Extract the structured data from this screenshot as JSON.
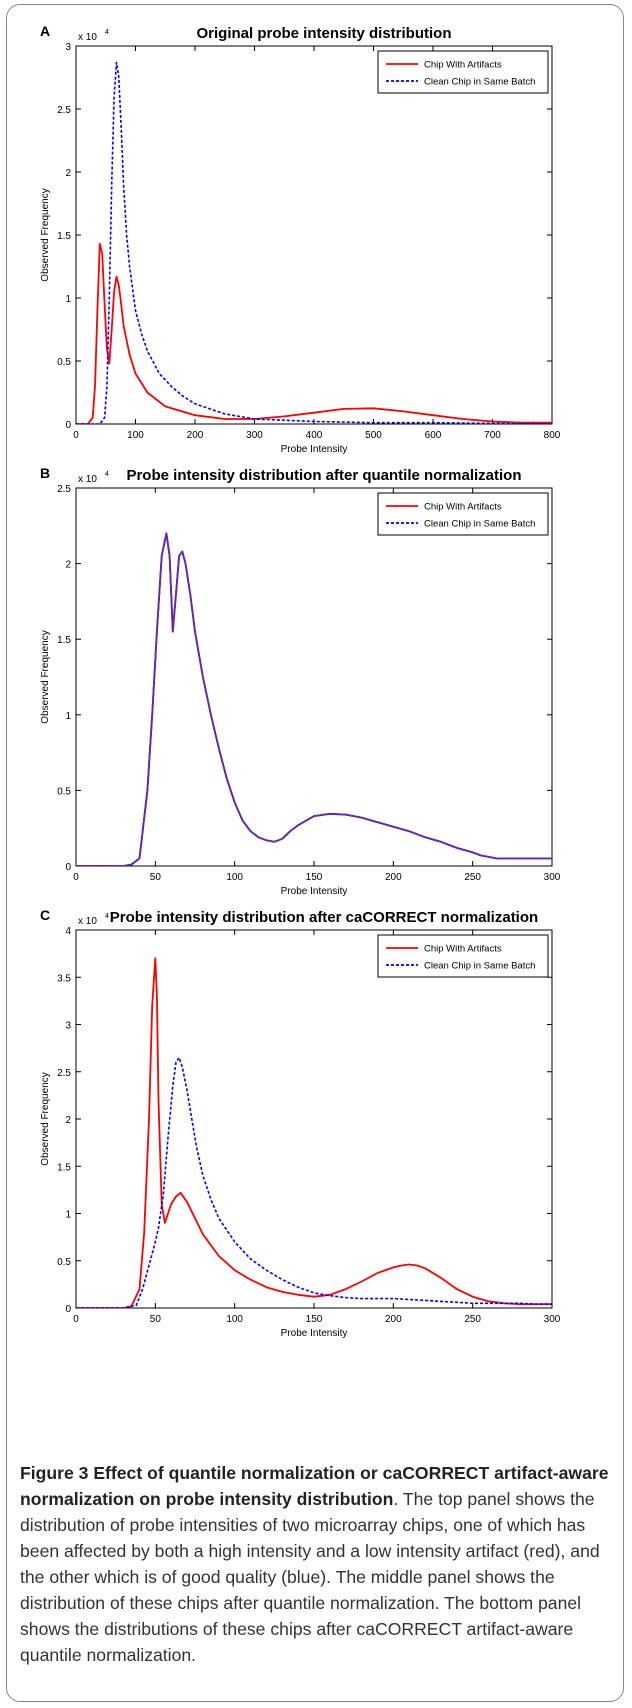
{
  "figure": {
    "caption_title": "Figure 3 Effect of quantile normalization or caCORRECT artifact-aware normalization on probe intensity distribution",
    "caption_period": ".",
    "caption_body": "The top panel shows the distribution of probe intensities of two microarray chips, one of which has been affected by both a high intensity and a low intensity artifact (red), and the other which is of good quality (blue). The middle panel shows the distribution of these chips after quantile normalization. The bottom panel shows the distributions of these chips after caCORRECT artifact-aware quantile normalization."
  },
  "colors": {
    "chip_with_artifacts": "#ff0000",
    "clean_chip": "#0000ff",
    "overlap": "#5b2bb8"
  },
  "chart_data": [
    {
      "panel_label": "A",
      "type": "line",
      "title": "Original probe intensity distribution",
      "xlabel": "Probe Intensity",
      "ylabel": "Observed Frequency",
      "exponent_label": "x 10",
      "exponent_power": "4",
      "xlim": [
        0,
        800
      ],
      "ylim": [
        0,
        3
      ],
      "xticks": [
        0,
        100,
        200,
        300,
        400,
        500,
        600,
        700,
        800
      ],
      "xtick_labels": [
        "0",
        "100",
        "200",
        "300",
        "400",
        "500",
        "600",
        "700",
        "800"
      ],
      "yticks": [
        0,
        0.5,
        1,
        1.5,
        2,
        2.5,
        3
      ],
      "ytick_labels": [
        "0",
        "0.5",
        "1",
        "1.5",
        "2",
        "2.5",
        "3"
      ],
      "legend_position": "top-right",
      "series": [
        {
          "name": "Chip With Artifacts",
          "color": "#ff0000",
          "style": "solid",
          "x": [
            0,
            20,
            28,
            32,
            36,
            40,
            44,
            48,
            52,
            56,
            60,
            64,
            68,
            72,
            76,
            80,
            90,
            100,
            120,
            150,
            200,
            250,
            300,
            350,
            400,
            450,
            500,
            550,
            600,
            650,
            700,
            750,
            800
          ],
          "y": [
            0,
            0,
            0.05,
            0.3,
            0.9,
            1.43,
            1.35,
            0.95,
            0.6,
            0.48,
            0.75,
            1.05,
            1.17,
            1.1,
            0.95,
            0.78,
            0.55,
            0.4,
            0.25,
            0.14,
            0.07,
            0.04,
            0.04,
            0.06,
            0.09,
            0.12,
            0.125,
            0.1,
            0.07,
            0.04,
            0.02,
            0.01,
            0.01
          ]
        },
        {
          "name": "Clean Chip in Same Batch",
          "color": "#0000ff",
          "style": "dashed",
          "x": [
            0,
            40,
            48,
            52,
            56,
            60,
            64,
            68,
            72,
            76,
            80,
            85,
            90,
            100,
            110,
            120,
            140,
            160,
            180,
            200,
            250,
            300,
            350,
            400,
            500,
            600,
            700,
            800
          ],
          "y": [
            0,
            0,
            0.05,
            0.3,
            1.0,
            1.9,
            2.6,
            2.87,
            2.75,
            2.35,
            1.9,
            1.5,
            1.25,
            0.9,
            0.72,
            0.58,
            0.4,
            0.3,
            0.22,
            0.16,
            0.08,
            0.04,
            0.03,
            0.02,
            0.01,
            0.01,
            0.005,
            0
          ]
        }
      ]
    },
    {
      "panel_label": "B",
      "type": "line",
      "title": "Probe intensity distribution after quantile normalization",
      "xlabel": "Probe Intensity",
      "ylabel": "Observed Frequency",
      "exponent_label": "x 10",
      "exponent_power": "4",
      "xlim": [
        0,
        300
      ],
      "ylim": [
        0,
        2.5
      ],
      "xticks": [
        0,
        50,
        100,
        150,
        200,
        250,
        300
      ],
      "xtick_labels": [
        "0",
        "50",
        "100",
        "150",
        "200",
        "250",
        "300"
      ],
      "yticks": [
        0,
        0.5,
        1,
        1.5,
        2,
        2.5
      ],
      "ytick_labels": [
        "0",
        "0.5",
        "1",
        "1.5",
        "2",
        "2.5"
      ],
      "legend_position": "top-right",
      "series": [
        {
          "name": "Chip With Artifacts",
          "color": "#ff0000",
          "style": "solid",
          "x": [
            0,
            30,
            35,
            40,
            45,
            48,
            51,
            54,
            57,
            59,
            61,
            63,
            65,
            67,
            69,
            72,
            75,
            80,
            85,
            90,
            95,
            100,
            105,
            110,
            115,
            120,
            125,
            130,
            135,
            140,
            145,
            150,
            160,
            170,
            180,
            190,
            200,
            210,
            220,
            230,
            240,
            250,
            255,
            260,
            265,
            270,
            280,
            290,
            300
          ],
          "y": [
            0,
            0,
            0.01,
            0.05,
            0.5,
            1.0,
            1.55,
            2.05,
            2.2,
            2.05,
            1.55,
            1.8,
            2.05,
            2.08,
            2.0,
            1.8,
            1.55,
            1.25,
            1.0,
            0.78,
            0.58,
            0.42,
            0.3,
            0.23,
            0.19,
            0.17,
            0.16,
            0.18,
            0.23,
            0.27,
            0.3,
            0.33,
            0.345,
            0.34,
            0.32,
            0.29,
            0.26,
            0.23,
            0.19,
            0.16,
            0.12,
            0.09,
            0.07,
            0.06,
            0.05,
            0.05,
            0.05,
            0.05,
            0.05
          ]
        },
        {
          "name": "Clean Chip in Same Batch",
          "color": "#0000ff",
          "style": "dashed",
          "x": [
            0,
            30,
            35,
            40,
            45,
            48,
            51,
            54,
            57,
            59,
            61,
            63,
            65,
            67,
            69,
            72,
            75,
            80,
            85,
            90,
            95,
            100,
            105,
            110,
            115,
            120,
            125,
            130,
            135,
            140,
            145,
            150,
            160,
            170,
            180,
            190,
            200,
            210,
            220,
            230,
            240,
            250,
            255,
            260,
            265,
            270,
            280,
            290,
            300
          ],
          "y": [
            0,
            0,
            0.01,
            0.05,
            0.5,
            1.0,
            1.55,
            2.05,
            2.2,
            2.05,
            1.55,
            1.8,
            2.05,
            2.08,
            2.0,
            1.8,
            1.55,
            1.25,
            1.0,
            0.78,
            0.58,
            0.42,
            0.3,
            0.23,
            0.19,
            0.17,
            0.16,
            0.18,
            0.23,
            0.27,
            0.3,
            0.33,
            0.345,
            0.34,
            0.32,
            0.29,
            0.26,
            0.23,
            0.19,
            0.16,
            0.12,
            0.09,
            0.07,
            0.06,
            0.05,
            0.05,
            0.05,
            0.05,
            0.05
          ]
        }
      ]
    },
    {
      "panel_label": "C",
      "type": "line",
      "title": "Probe intensity distribution after caCORRECT normalization",
      "xlabel": "Probe Intensity",
      "ylabel": "Observed Frequency",
      "exponent_label": "x 10",
      "exponent_power": "4",
      "xlim": [
        0,
        300
      ],
      "ylim": [
        0,
        4
      ],
      "xticks": [
        0,
        50,
        100,
        150,
        200,
        250,
        300
      ],
      "xtick_labels": [
        "0",
        "50",
        "100",
        "150",
        "200",
        "250",
        "300"
      ],
      "yticks": [
        0,
        0.5,
        1,
        1.5,
        2,
        2.5,
        3,
        3.5,
        4
      ],
      "ytick_labels": [
        "0",
        "0.5",
        "1",
        "1.5",
        "2",
        "2.5",
        "3",
        "3.5",
        "4"
      ],
      "legend_position": "top-right",
      "series": [
        {
          "name": "Chip With Artifacts",
          "color": "#ff0000",
          "style": "solid",
          "x": [
            0,
            30,
            35,
            40,
            43,
            46,
            48,
            50,
            51,
            52,
            54,
            56,
            58,
            60,
            63,
            66,
            70,
            75,
            80,
            90,
            100,
            110,
            120,
            130,
            140,
            150,
            160,
            170,
            180,
            190,
            200,
            205,
            210,
            215,
            220,
            230,
            240,
            250,
            260,
            270,
            280,
            290,
            300
          ],
          "y": [
            0,
            0,
            0.02,
            0.2,
            0.8,
            2.0,
            3.2,
            3.7,
            3.3,
            2.2,
            1.1,
            0.9,
            1.0,
            1.1,
            1.18,
            1.22,
            1.12,
            0.95,
            0.78,
            0.55,
            0.4,
            0.3,
            0.22,
            0.17,
            0.14,
            0.12,
            0.14,
            0.2,
            0.28,
            0.37,
            0.43,
            0.45,
            0.46,
            0.45,
            0.42,
            0.32,
            0.2,
            0.12,
            0.07,
            0.05,
            0.04,
            0.04,
            0.04
          ]
        },
        {
          "name": "Clean Chip in Same Batch",
          "color": "#0000ff",
          "style": "dashed",
          "x": [
            0,
            30,
            38,
            42,
            46,
            50,
            52,
            55,
            58,
            61,
            63,
            65,
            67,
            70,
            73,
            76,
            80,
            85,
            90,
            100,
            110,
            120,
            130,
            140,
            150,
            160,
            170,
            180,
            190,
            200,
            210,
            220,
            230,
            240,
            250,
            260,
            270,
            280,
            290,
            300
          ],
          "y": [
            0,
            0,
            0.03,
            0.2,
            0.45,
            0.7,
            0.85,
            1.2,
            1.8,
            2.35,
            2.6,
            2.65,
            2.55,
            2.3,
            2.0,
            1.7,
            1.4,
            1.15,
            0.95,
            0.7,
            0.52,
            0.4,
            0.3,
            0.22,
            0.16,
            0.13,
            0.11,
            0.1,
            0.1,
            0.1,
            0.09,
            0.08,
            0.07,
            0.06,
            0.05,
            0.05,
            0.05,
            0.05,
            0.04,
            0.04
          ]
        }
      ]
    }
  ]
}
